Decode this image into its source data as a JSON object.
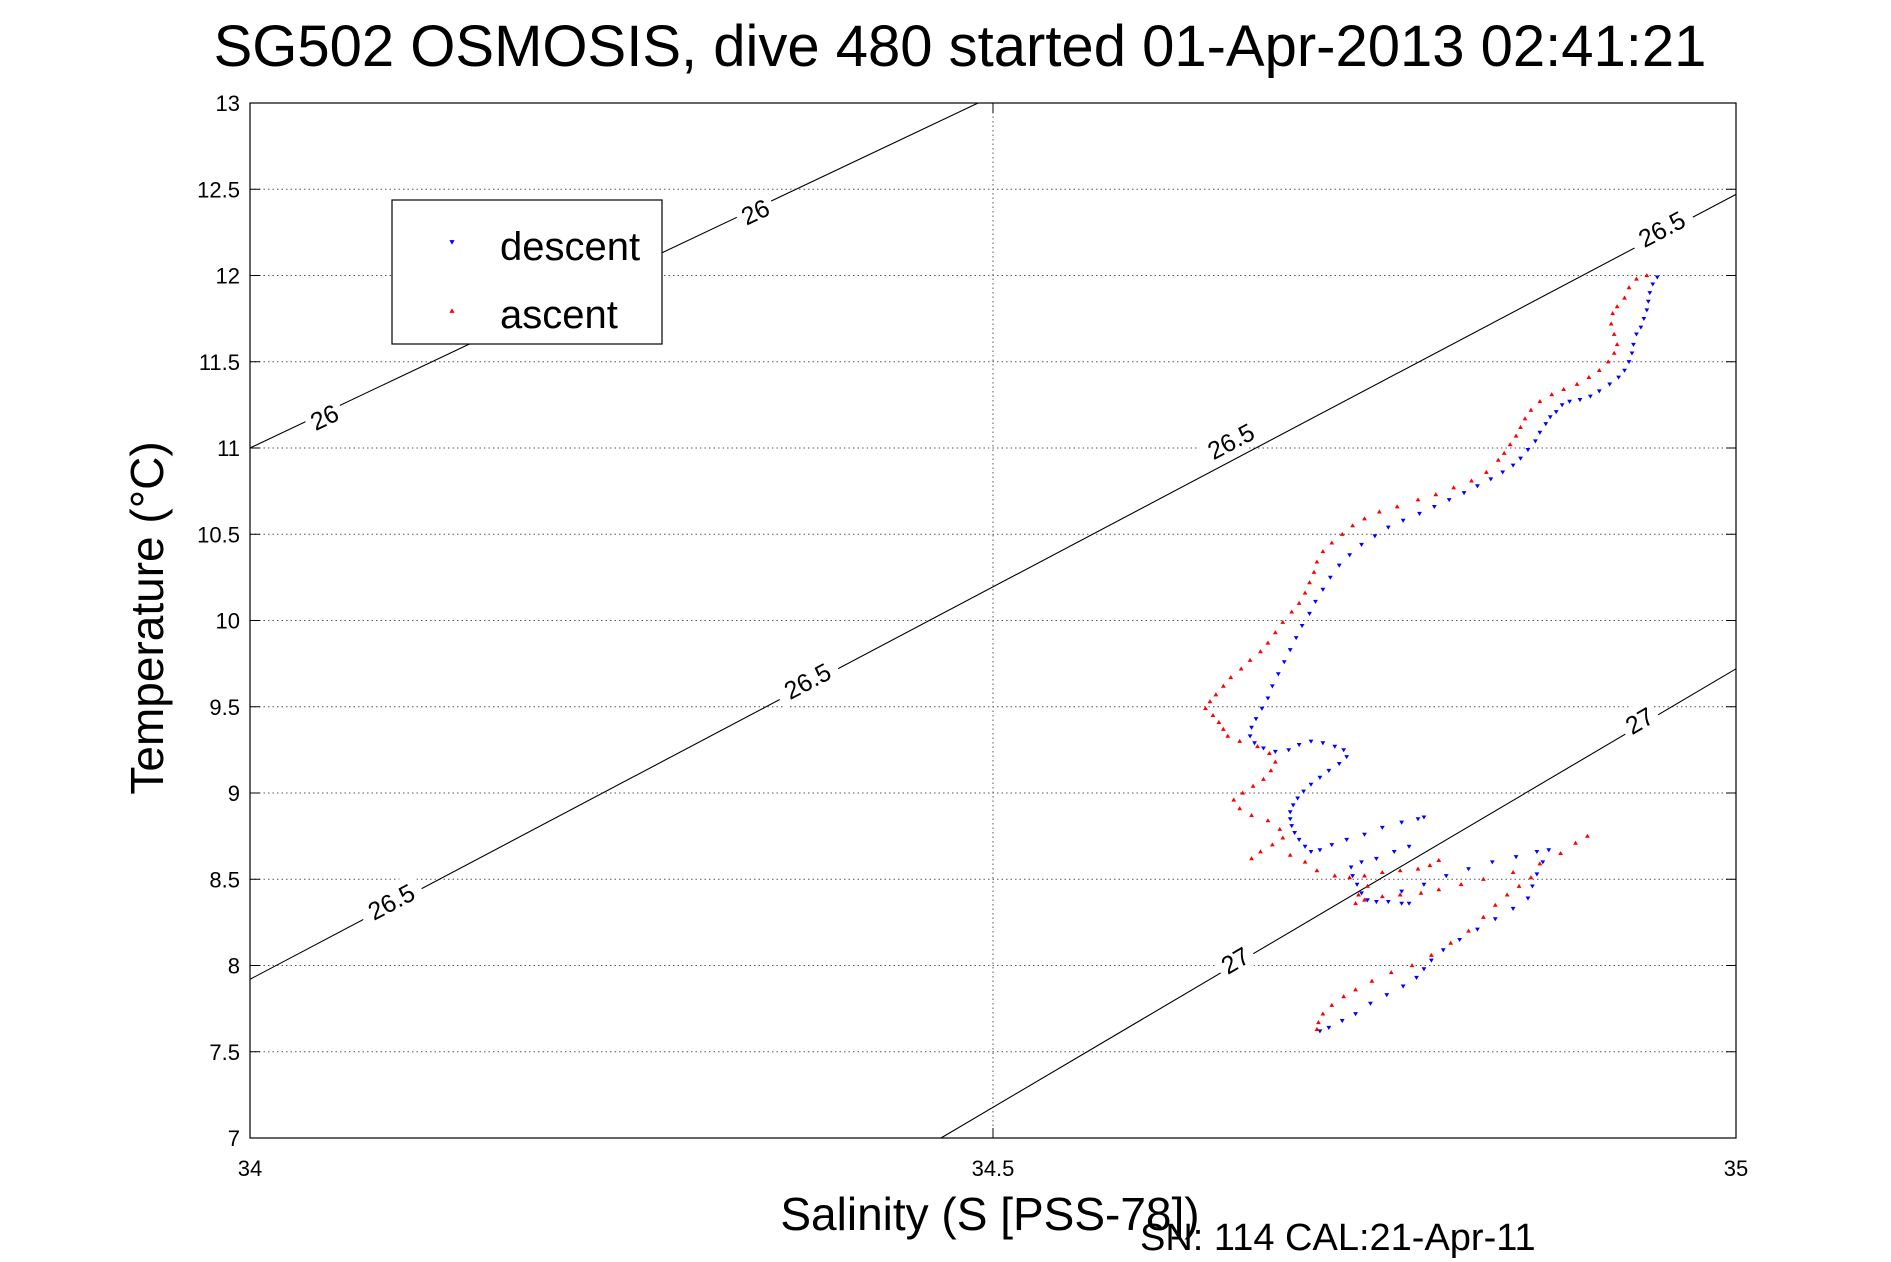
{
  "chart_data": {
    "type": "scatter",
    "title": "SG502 OSMOSIS, dive 480 started 01-Apr-2013 02:41:21",
    "xlabel": "Salinity (S [PSS-78])",
    "ylabel": "Temperature (°C)",
    "xlim": [
      34,
      35
    ],
    "ylim": [
      7,
      13
    ],
    "xticks": [
      "34",
      "34.5",
      "35"
    ],
    "yticks": [
      "7",
      "7.5",
      "8",
      "8.5",
      "9",
      "9.5",
      "10",
      "10.5",
      "11",
      "11.5",
      "12",
      "12.5",
      "13"
    ],
    "grid": true,
    "legend_position": "top-left",
    "footer": "SN: 114  CAL:21-Apr-11",
    "colors": {
      "descent": "#0000ff",
      "ascent": "#ff0000"
    },
    "density_contours": [
      {
        "label": "26",
        "points": [
          [
            34.0,
            11.0
          ],
          [
            34.49,
            13.0
          ]
        ]
      },
      {
        "label": "26.5",
        "points": [
          [
            34.0,
            7.92
          ],
          [
            35.0,
            12.47
          ]
        ]
      },
      {
        "label": "27",
        "points": [
          [
            34.465,
            7.0
          ],
          [
            35.0,
            9.72
          ]
        ]
      }
    ],
    "contour_labels": [
      {
        "text": "26",
        "x": 34.05,
        "y": 11.18
      },
      {
        "text": "26",
        "x": 34.34,
        "y": 12.37
      },
      {
        "text": "26.5",
        "x": 34.095,
        "y": 8.37
      },
      {
        "text": "26.5",
        "x": 34.375,
        "y": 9.65
      },
      {
        "text": "26.5",
        "x": 34.66,
        "y": 11.04
      },
      {
        "text": "26.5",
        "x": 34.95,
        "y": 12.27
      },
      {
        "text": "27",
        "x": 34.663,
        "y": 8.03
      },
      {
        "text": "27",
        "x": 34.935,
        "y": 9.42
      }
    ],
    "series": [
      {
        "name": "descent",
        "marker": "triangle-down",
        "points": [
          [
            34.947,
            11.99
          ],
          [
            34.944,
            11.95
          ],
          [
            34.942,
            11.9
          ],
          [
            34.941,
            11.85
          ],
          [
            34.94,
            11.8
          ],
          [
            34.938,
            11.75
          ],
          [
            34.936,
            11.7
          ],
          [
            34.933,
            11.66
          ],
          [
            34.931,
            11.6
          ],
          [
            34.93,
            11.55
          ],
          [
            34.928,
            11.5
          ],
          [
            34.925,
            11.45
          ],
          [
            34.921,
            11.41
          ],
          [
            34.915,
            11.37
          ],
          [
            34.908,
            11.33
          ],
          [
            34.902,
            11.3
          ],
          [
            34.895,
            11.28
          ],
          [
            34.888,
            11.27
          ],
          [
            34.883,
            11.25
          ],
          [
            34.879,
            11.21
          ],
          [
            34.875,
            11.18
          ],
          [
            34.872,
            11.14
          ],
          [
            34.868,
            11.09
          ],
          [
            34.865,
            11.04
          ],
          [
            34.86,
            10.99
          ],
          [
            34.855,
            10.94
          ],
          [
            34.85,
            10.9
          ],
          [
            34.843,
            10.86
          ],
          [
            34.835,
            10.82
          ],
          [
            34.826,
            10.78
          ],
          [
            34.817,
            10.74
          ],
          [
            34.807,
            10.7
          ],
          [
            34.797,
            10.66
          ],
          [
            34.787,
            10.62
          ],
          [
            34.776,
            10.58
          ],
          [
            34.766,
            10.54
          ],
          [
            34.757,
            10.49
          ],
          [
            34.748,
            10.44
          ],
          [
            34.74,
            10.38
          ],
          [
            34.733,
            10.32
          ],
          [
            34.727,
            10.25
          ],
          [
            34.722,
            10.18
          ],
          [
            34.717,
            10.11
          ],
          [
            34.713,
            10.04
          ],
          [
            34.708,
            9.97
          ],
          [
            34.704,
            9.9
          ],
          [
            34.7,
            9.83
          ],
          [
            34.696,
            9.76
          ],
          [
            34.692,
            9.69
          ],
          [
            34.688,
            9.62
          ],
          [
            34.685,
            9.55
          ],
          [
            34.681,
            9.49
          ],
          [
            34.677,
            9.43
          ],
          [
            34.674,
            9.38
          ],
          [
            34.673,
            9.33
          ],
          [
            34.676,
            9.29
          ],
          [
            34.682,
            9.26
          ],
          [
            34.69,
            9.24
          ],
          [
            34.699,
            9.25
          ],
          [
            34.706,
            9.28
          ],
          [
            34.714,
            9.3
          ],
          [
            34.722,
            9.29
          ],
          [
            34.73,
            9.27
          ],
          [
            34.736,
            9.25
          ],
          [
            34.738,
            9.21
          ],
          [
            34.733,
            9.17
          ],
          [
            34.726,
            9.13
          ],
          [
            34.72,
            9.09
          ],
          [
            34.714,
            9.05
          ],
          [
            34.709,
            9.01
          ],
          [
            34.705,
            8.97
          ],
          [
            34.702,
            8.93
          ],
          [
            34.7,
            8.89
          ],
          [
            34.7,
            8.85
          ],
          [
            34.701,
            8.81
          ],
          [
            34.703,
            8.77
          ],
          [
            34.706,
            8.73
          ],
          [
            34.71,
            8.69
          ],
          [
            34.714,
            8.66
          ],
          [
            34.72,
            8.67
          ],
          [
            34.728,
            8.7
          ],
          [
            34.738,
            8.73
          ],
          [
            34.75,
            8.76
          ],
          [
            34.762,
            8.8
          ],
          [
            34.775,
            8.83
          ],
          [
            34.786,
            8.85
          ],
          [
            34.79,
            8.86
          ],
          [
            34.78,
            8.69
          ],
          [
            34.77,
            8.66
          ],
          [
            34.758,
            8.62
          ],
          [
            34.748,
            8.6
          ],
          [
            34.741,
            8.57
          ],
          [
            34.742,
            8.52
          ],
          [
            34.745,
            8.47
          ],
          [
            34.748,
            8.42
          ],
          [
            34.752,
            8.38
          ],
          [
            34.758,
            8.37
          ],
          [
            34.766,
            8.37
          ],
          [
            34.775,
            8.36
          ],
          [
            34.78,
            8.36
          ],
          [
            34.775,
            8.43
          ],
          [
            34.79,
            8.47
          ],
          [
            34.805,
            8.52
          ],
          [
            34.82,
            8.56
          ],
          [
            34.836,
            8.6
          ],
          [
            34.852,
            8.63
          ],
          [
            34.866,
            8.66
          ],
          [
            34.874,
            8.67
          ],
          [
            34.87,
            8.6
          ],
          [
            34.866,
            8.53
          ],
          [
            34.863,
            8.46
          ],
          [
            34.86,
            8.39
          ],
          [
            34.85,
            8.33
          ],
          [
            34.838,
            8.27
          ],
          [
            34.826,
            8.21
          ],
          [
            34.814,
            8.15
          ],
          [
            34.803,
            8.09
          ],
          [
            34.795,
            8.03
          ],
          [
            34.79,
            7.98
          ],
          [
            34.785,
            7.93
          ],
          [
            34.776,
            7.88
          ],
          [
            34.765,
            7.83
          ],
          [
            34.754,
            7.78
          ],
          [
            34.744,
            7.72
          ],
          [
            34.735,
            7.68
          ],
          [
            34.726,
            7.64
          ],
          [
            34.72,
            7.62
          ]
        ]
      },
      {
        "name": "ascent",
        "marker": "triangle-up",
        "points": [
          [
            34.94,
            12.0
          ],
          [
            34.933,
            11.98
          ],
          [
            34.928,
            11.93
          ],
          [
            34.925,
            11.87
          ],
          [
            34.92,
            11.82
          ],
          [
            34.917,
            11.78
          ],
          [
            34.916,
            11.72
          ],
          [
            34.918,
            11.66
          ],
          [
            34.92,
            11.6
          ],
          [
            34.918,
            11.55
          ],
          [
            34.914,
            11.5
          ],
          [
            34.908,
            11.45
          ],
          [
            34.901,
            11.41
          ],
          [
            34.893,
            11.37
          ],
          [
            34.884,
            11.34
          ],
          [
            34.876,
            11.31
          ],
          [
            34.868,
            11.27
          ],
          [
            34.862,
            11.22
          ],
          [
            34.858,
            11.17
          ],
          [
            34.855,
            11.12
          ],
          [
            34.852,
            11.07
          ],
          [
            34.848,
            11.02
          ],
          [
            34.844,
            10.97
          ],
          [
            34.84,
            10.93
          ],
          [
            34.832,
            10.86
          ],
          [
            34.822,
            10.81
          ],
          [
            34.81,
            10.77
          ],
          [
            34.798,
            10.73
          ],
          [
            34.786,
            10.7
          ],
          [
            34.772,
            10.66
          ],
          [
            34.76,
            10.63
          ],
          [
            34.75,
            10.59
          ],
          [
            34.742,
            10.55
          ],
          [
            34.735,
            10.5
          ],
          [
            34.728,
            10.45
          ],
          [
            34.722,
            10.4
          ],
          [
            34.718,
            10.34
          ],
          [
            34.716,
            10.28
          ],
          [
            34.713,
            10.22
          ],
          [
            34.71,
            10.16
          ],
          [
            34.706,
            10.1
          ],
          [
            34.701,
            10.05
          ],
          [
            34.695,
            9.99
          ],
          [
            34.69,
            9.93
          ],
          [
            34.685,
            9.87
          ],
          [
            34.68,
            9.82
          ],
          [
            34.673,
            9.77
          ],
          [
            34.667,
            9.72
          ],
          [
            34.66,
            9.67
          ],
          [
            34.655,
            9.62
          ],
          [
            34.65,
            9.57
          ],
          [
            34.646,
            9.53
          ],
          [
            34.643,
            9.49
          ],
          [
            34.648,
            9.45
          ],
          [
            34.652,
            9.41
          ],
          [
            34.655,
            9.37
          ],
          [
            34.658,
            9.33
          ],
          [
            34.666,
            9.3
          ],
          [
            34.678,
            9.27
          ],
          [
            34.686,
            9.23
          ],
          [
            34.69,
            9.18
          ],
          [
            34.687,
            9.13
          ],
          [
            34.682,
            9.08
          ],
          [
            34.675,
            9.04
          ],
          [
            34.668,
            9.0
          ],
          [
            34.662,
            8.96
          ],
          [
            34.666,
            8.91
          ],
          [
            34.674,
            8.87
          ],
          [
            34.685,
            8.84
          ],
          [
            34.693,
            8.79
          ],
          [
            34.695,
            8.74
          ],
          [
            34.688,
            8.7
          ],
          [
            34.68,
            8.66
          ],
          [
            34.674,
            8.62
          ],
          [
            34.7,
            8.64
          ],
          [
            34.71,
            8.6
          ],
          [
            34.718,
            8.55
          ],
          [
            34.73,
            8.52
          ],
          [
            34.74,
            8.51
          ],
          [
            34.75,
            8.52
          ],
          [
            34.762,
            8.54
          ],
          [
            34.774,
            8.55
          ],
          [
            34.786,
            8.56
          ],
          [
            34.794,
            8.58
          ],
          [
            34.8,
            8.61
          ],
          [
            34.752,
            8.46
          ],
          [
            34.746,
            8.41
          ],
          [
            34.744,
            8.36
          ],
          [
            34.75,
            8.38
          ],
          [
            34.762,
            8.4
          ],
          [
            34.774,
            8.41
          ],
          [
            34.788,
            8.42
          ],
          [
            34.8,
            8.44
          ],
          [
            34.815,
            8.47
          ],
          [
            34.83,
            8.5
          ],
          [
            34.85,
            8.54
          ],
          [
            34.868,
            8.59
          ],
          [
            34.882,
            8.65
          ],
          [
            34.892,
            8.71
          ],
          [
            34.9,
            8.75
          ],
          [
            34.862,
            8.51
          ],
          [
            34.854,
            8.46
          ],
          [
            34.846,
            8.41
          ],
          [
            34.838,
            8.35
          ],
          [
            34.83,
            8.28
          ],
          [
            34.82,
            8.2
          ],
          [
            34.808,
            8.13
          ],
          [
            34.795,
            8.06
          ],
          [
            34.782,
            8.0
          ],
          [
            34.768,
            7.96
          ],
          [
            34.755,
            7.91
          ],
          [
            34.744,
            7.86
          ],
          [
            34.736,
            7.82
          ],
          [
            34.728,
            7.77
          ],
          [
            34.722,
            7.72
          ],
          [
            34.719,
            7.67
          ],
          [
            34.718,
            7.63
          ]
        ]
      }
    ]
  }
}
